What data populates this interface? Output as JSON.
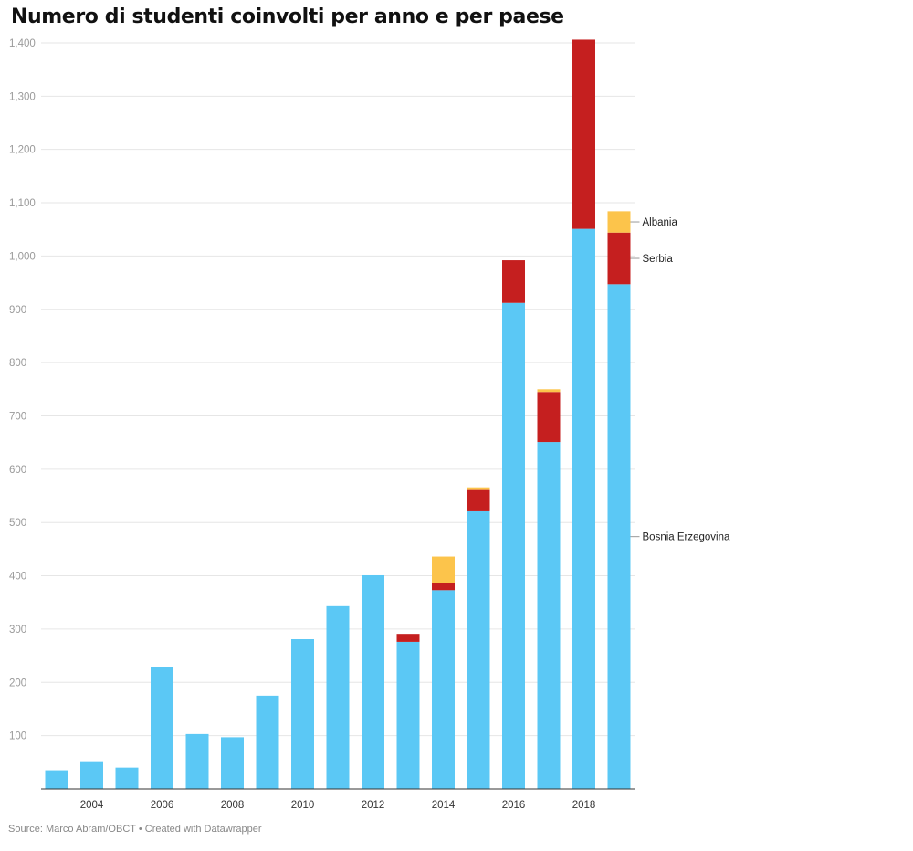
{
  "title": "Numero di studenti coinvolti per anno e per paese",
  "source": "Source: Marco Abram/OBCT • Created with Datawrapper",
  "chart_data": {
    "type": "bar",
    "stacked": true,
    "title": "Numero di studenti coinvolti per anno e per paese",
    "categories": [
      "2003",
      "2004",
      "2005",
      "2006",
      "2007",
      "2008",
      "2009",
      "2010",
      "2011",
      "2012",
      "2013",
      "2014",
      "2015",
      "2016",
      "2017",
      "2018",
      "2019"
    ],
    "x_tick_labels": [
      "2004",
      "2006",
      "2008",
      "2010",
      "2012",
      "2014",
      "2016",
      "2018"
    ],
    "y_tick_labels": [
      "100",
      "200",
      "300",
      "400",
      "500",
      "600",
      "700",
      "800",
      "900",
      "1,000",
      "1,100",
      "1,200",
      "1,300",
      "1,400"
    ],
    "ylim": [
      0,
      1410
    ],
    "grid": true,
    "legend": "direct labels at right",
    "series": [
      {
        "name": "Bosnia Erzegovina",
        "color": "#5bc8f5",
        "values": [
          35,
          52,
          40,
          228,
          103,
          97,
          175,
          281,
          343,
          401,
          276,
          373,
          521,
          912,
          651,
          1051,
          947
        ]
      },
      {
        "name": "Serbia",
        "color": "#c51f1f",
        "values": [
          0,
          0,
          0,
          0,
          0,
          0,
          0,
          0,
          0,
          0,
          15,
          13,
          40,
          80,
          94,
          355,
          97
        ]
      },
      {
        "name": "Albania",
        "color": "#fcc44b",
        "values": [
          0,
          0,
          0,
          0,
          0,
          0,
          0,
          0,
          0,
          0,
          0,
          50,
          5,
          0,
          5,
          0,
          40
        ]
      }
    ]
  }
}
